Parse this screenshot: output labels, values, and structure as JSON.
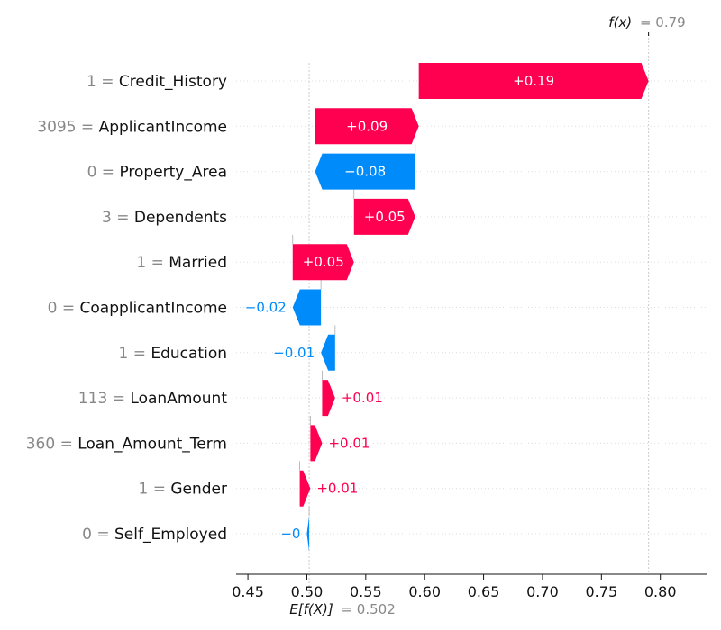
{
  "chart_data": {
    "type": "waterfall",
    "base_value": 0.502,
    "output_value": 0.79,
    "fx_label": "f(x)",
    "fx_value_text": "= 0.79",
    "ex_label": "E[f(X)]",
    "ex_value_text": "= 0.502",
    "xlim": [
      0.44,
      0.84
    ],
    "x_ticks": [
      0.45,
      0.5,
      0.55,
      0.6,
      0.65,
      0.7,
      0.75,
      0.8
    ],
    "x_tick_labels": [
      "0.45",
      "0.50",
      "0.55",
      "0.60",
      "0.65",
      "0.70",
      "0.75",
      "0.80"
    ],
    "features": [
      {
        "value": "1",
        "name": "Credit_History",
        "start": 0.595,
        "end": 0.79,
        "label": "+0.19",
        "sign": "pos"
      },
      {
        "value": "3095",
        "name": "ApplicantIncome",
        "start": 0.507,
        "end": 0.595,
        "label": "+0.09",
        "sign": "pos"
      },
      {
        "value": "0",
        "name": "Property_Area",
        "start": 0.592,
        "end": 0.507,
        "label": "−0.08",
        "sign": "neg"
      },
      {
        "value": "3",
        "name": "Dependents",
        "start": 0.54,
        "end": 0.592,
        "label": "+0.05",
        "sign": "pos"
      },
      {
        "value": "1",
        "name": "Married",
        "start": 0.488,
        "end": 0.54,
        "label": "+0.05",
        "sign": "pos"
      },
      {
        "value": "0",
        "name": "CoapplicantIncome",
        "start": 0.512,
        "end": 0.488,
        "label": "−0.02",
        "sign": "neg"
      },
      {
        "value": "1",
        "name": "Education",
        "start": 0.524,
        "end": 0.512,
        "label": "−0.01",
        "sign": "neg"
      },
      {
        "value": "113",
        "name": "LoanAmount",
        "start": 0.513,
        "end": 0.524,
        "label": "+0.01",
        "sign": "pos"
      },
      {
        "value": "360",
        "name": "Loan_Amount_Term",
        "start": 0.503,
        "end": 0.513,
        "label": "+0.01",
        "sign": "pos"
      },
      {
        "value": "1",
        "name": "Gender",
        "start": 0.494,
        "end": 0.503,
        "label": "+0.01",
        "sign": "pos"
      },
      {
        "value": "0",
        "name": "Self_Employed",
        "start": 0.502,
        "end": 0.5,
        "label": "−0",
        "sign": "neg"
      }
    ],
    "colors": {
      "positive": "#ff0051",
      "negative": "#008bfb",
      "axis": "#111111",
      "muted_text": "#888888",
      "guide": "#cccccc"
    }
  }
}
